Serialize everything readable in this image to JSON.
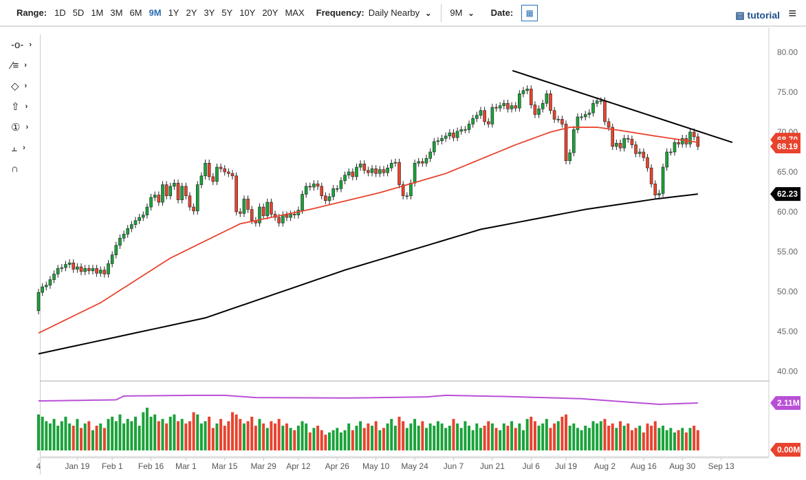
{
  "toolbar": {
    "range_label": "Range:",
    "ranges": [
      "1D",
      "5D",
      "1M",
      "3M",
      "6M",
      "9M",
      "1Y",
      "2Y",
      "3Y",
      "5Y",
      "10Y",
      "20Y",
      "MAX"
    ],
    "active_range": "9M",
    "frequency_label": "Frequency:",
    "frequency_value": "Daily Nearby",
    "period_value": "9M",
    "date_label": "Date:",
    "tutorial_label": "tutorial"
  },
  "left_tools": [
    {
      "icon": "crosshair-line-icon",
      "has_menu": true
    },
    {
      "icon": "fibonacci-tool-icon",
      "has_menu": true
    },
    {
      "icon": "shape-tool-icon",
      "has_menu": true
    },
    {
      "icon": "arrow-up-icon",
      "has_menu": true
    },
    {
      "icon": "numbered-marker-icon",
      "glyph": "1",
      "has_menu": true
    },
    {
      "icon": "measure-tool-icon",
      "has_menu": true
    },
    {
      "icon": "magnet-icon",
      "has_menu": false
    }
  ],
  "colors": {
    "up": "#1aa23a",
    "down": "#e8432e",
    "ma50": "#e8432e",
    "ma200": "#000000",
    "open_interest": "#b94fd6",
    "trendline": "#000000"
  },
  "chart_data": {
    "type": "candlestick",
    "ylim": [
      40,
      80
    ],
    "y_ticks": [
      "80.00",
      "75.00",
      "70.00",
      "65.00",
      "60.00",
      "55.00",
      "50.00",
      "45.00",
      "40.00"
    ],
    "x_ticks": [
      {
        "label": "4",
        "index": 0
      },
      {
        "label": "Jan 19",
        "index": 10
      },
      {
        "label": "Feb 1",
        "index": 19
      },
      {
        "label": "Feb 16",
        "index": 29
      },
      {
        "label": "Mar 1",
        "index": 38
      },
      {
        "label": "Mar 15",
        "index": 48
      },
      {
        "label": "Mar 29",
        "index": 58
      },
      {
        "label": "Apr 12",
        "index": 67
      },
      {
        "label": "Apr 26",
        "index": 77
      },
      {
        "label": "May 10",
        "index": 87
      },
      {
        "label": "May 24",
        "index": 97
      },
      {
        "label": "Jun 7",
        "index": 107
      },
      {
        "label": "Jun 21",
        "index": 117
      },
      {
        "label": "Jul 6",
        "index": 127
      },
      {
        "label": "Jul 19",
        "index": 136
      },
      {
        "label": "Aug 2",
        "index": 146
      },
      {
        "label": "Aug 16",
        "index": 156
      },
      {
        "label": "Aug 30",
        "index": 166
      },
      {
        "label": "Sep 13",
        "index": 176
      }
    ],
    "first_open": 47.6,
    "close": [
      49.9,
      50.6,
      50.8,
      51.5,
      52.2,
      52.9,
      53.0,
      53.4,
      53.6,
      52.8,
      53.1,
      52.5,
      52.9,
      52.6,
      52.9,
      52.3,
      52.7,
      52.2,
      53.5,
      54.6,
      55.8,
      56.7,
      57.2,
      57.9,
      58.4,
      58.9,
      59.3,
      59.6,
      60.6,
      61.8,
      62.1,
      61.2,
      63.4,
      62.0,
      63.2,
      63.6,
      61.5,
      63.2,
      62.0,
      60.6,
      60.1,
      63.4,
      64.5,
      66.1,
      64.4,
      63.8,
      65.6,
      65.4,
      65.0,
      64.8,
      64.5,
      60.0,
      59.8,
      61.6,
      60.3,
      58.9,
      58.6,
      60.6,
      59.5,
      61.2,
      59.7,
      59.3,
      58.6,
      59.6,
      59.3,
      59.7,
      59.6,
      60.2,
      62.2,
      63.2,
      63.1,
      63.5,
      63.2,
      62.0,
      61.4,
      61.9,
      62.9,
      62.9,
      63.9,
      64.6,
      65.0,
      64.4,
      65.6,
      66.0,
      65.2,
      64.9,
      65.4,
      64.8,
      65.3,
      64.9,
      65.5,
      66.1,
      66.2,
      63.4,
      62.0,
      62.0,
      63.6,
      66.1,
      66.3,
      66.1,
      66.7,
      67.5,
      68.8,
      68.9,
      69.2,
      69.5,
      69.9,
      69.3,
      70.1,
      70.3,
      70.3,
      71.0,
      71.7,
      72.1,
      72.7,
      71.3,
      71.0,
      73.1,
      73.0,
      73.3,
      73.6,
      72.9,
      73.3,
      73.0,
      74.8,
      75.2,
      75.4,
      73.4,
      72.2,
      72.9,
      73.6,
      74.8,
      72.7,
      71.6,
      71.6,
      71.0,
      66.4,
      67.4,
      70.3,
      71.9,
      71.9,
      72.2,
      72.4,
      73.6,
      73.9,
      73.9,
      71.3,
      70.6,
      68.2,
      68.6,
      68.0,
      69.2,
      69.1,
      68.4,
      67.3,
      67.5,
      66.8,
      65.5,
      63.5,
      62.1,
      62.3,
      65.6,
      67.5,
      67.5,
      68.7,
      68.5,
      69.2,
      68.5,
      70.0,
      69.4,
      68.19
    ],
    "volume_m": [
      1.6,
      1.5,
      1.3,
      1.2,
      1.4,
      1.1,
      1.3,
      1.5,
      1.2,
      1.1,
      1.4,
      1.0,
      1.2,
      1.3,
      0.9,
      1.1,
      1.2,
      1.0,
      1.4,
      1.5,
      1.3,
      1.6,
      1.2,
      1.4,
      1.3,
      1.5,
      1.1,
      1.7,
      1.9,
      1.5,
      1.6,
      1.3,
      1.4,
      1.2,
      1.5,
      1.6,
      1.3,
      1.4,
      1.2,
      1.3,
      1.7,
      1.6,
      1.2,
      1.3,
      1.5,
      1.0,
      1.2,
      1.4,
      1.1,
      1.3,
      1.7,
      1.6,
      1.4,
      1.2,
      1.3,
      1.5,
      1.1,
      1.4,
      1.2,
      1.0,
      1.3,
      1.2,
      1.4,
      1.1,
      1.2,
      1.0,
      0.9,
      1.1,
      1.3,
      1.2,
      0.8,
      1.0,
      1.1,
      0.9,
      0.7,
      0.8,
      0.9,
      1.0,
      0.8,
      0.9,
      1.2,
      0.9,
      1.1,
      1.3,
      1.0,
      1.2,
      1.1,
      1.3,
      0.9,
      1.0,
      1.2,
      1.4,
      1.1,
      1.5,
      1.3,
      1.0,
      1.2,
      1.4,
      1.1,
      1.3,
      1.0,
      1.2,
      1.1,
      1.3,
      1.2,
      1.0,
      1.1,
      1.4,
      1.2,
      1.0,
      1.3,
      1.1,
      0.9,
      1.2,
      1.0,
      1.1,
      1.3,
      1.2,
      1.0,
      0.9,
      1.2,
      1.1,
      1.3,
      1.0,
      1.2,
      0.9,
      1.4,
      1.5,
      1.3,
      1.1,
      1.2,
      1.4,
      1.0,
      1.2,
      1.3,
      1.5,
      1.6,
      1.1,
      1.2,
      1.0,
      0.9,
      1.1,
      1.0,
      1.3,
      1.2,
      1.3,
      1.4,
      1.1,
      1.2,
      1.0,
      1.3,
      1.1,
      1.2,
      0.9,
      1.0,
      1.1,
      0.8,
      1.2,
      1.1,
      1.3,
      1.0,
      1.1,
      0.9,
      1.0,
      0.8,
      0.9,
      1.0,
      0.8,
      1.0,
      1.1,
      0.9
    ],
    "ma50": [
      [
        0,
        44.8
      ],
      [
        16,
        48.6
      ],
      [
        34,
        54.2
      ],
      [
        52,
        58.5
      ],
      [
        70,
        60.3
      ],
      [
        88,
        62.4
      ],
      [
        105,
        64.8
      ],
      [
        123,
        68.4
      ],
      [
        132,
        70.0
      ],
      [
        137,
        70.6
      ],
      [
        144,
        70.6
      ],
      [
        150,
        70.2
      ],
      [
        159,
        69.5
      ],
      [
        170,
        68.7
      ]
    ],
    "ma200": [
      [
        0,
        42.2
      ],
      [
        43,
        46.7
      ],
      [
        79,
        52.7
      ],
      [
        114,
        57.8
      ],
      [
        141,
        60.3
      ],
      [
        159,
        61.6
      ],
      [
        170,
        62.23
      ]
    ],
    "trendline": [
      [
        122.2,
        77.7
      ],
      [
        178.9,
        68.7
      ]
    ],
    "open_interest_m": [
      [
        0,
        2.2
      ],
      [
        20,
        2.25
      ],
      [
        22,
        2.42
      ],
      [
        40,
        2.45
      ],
      [
        48,
        2.45
      ],
      [
        56,
        2.35
      ],
      [
        80,
        2.33
      ],
      [
        100,
        2.38
      ],
      [
        105,
        2.45
      ],
      [
        120,
        2.4
      ],
      [
        140,
        2.3
      ],
      [
        160,
        2.05
      ],
      [
        170,
        2.11
      ]
    ],
    "last_price_label": "68.19",
    "ma50_label": "68.70",
    "ma200_label": "62.23",
    "open_interest_label": "2.11M",
    "volume_zero_label": "0.00M"
  }
}
